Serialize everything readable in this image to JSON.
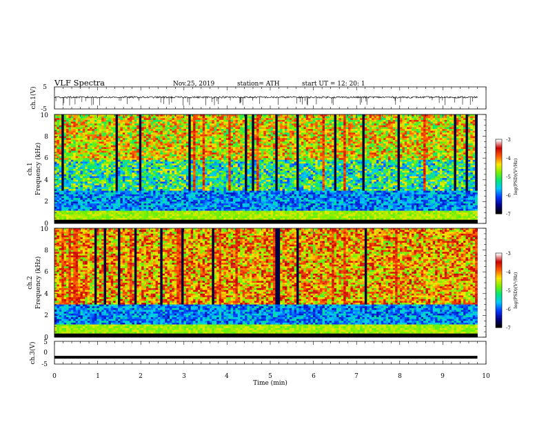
{
  "header": {
    "title": "VLF  Spectra",
    "date": "Nov.25, 2019",
    "station": "station= ATH",
    "start": "start  UT  =    12: 20: 1"
  },
  "chart_data": [
    {
      "type": "line",
      "panel": "ch1-waveform",
      "ylabel": "ch.1(V)",
      "xlim": [
        0,
        10
      ],
      "ylim": [
        -5,
        5
      ],
      "yticks": [
        "5",
        "-5"
      ],
      "x_end": 9.8,
      "approx_level": 0.3,
      "approx_noise": 0.4
    },
    {
      "type": "heatmap",
      "panel": "ch1-spectrogram",
      "ylabel_top": "ch.1",
      "ylabel": "Frequency  (kHz)",
      "xlim": [
        0,
        10
      ],
      "ylim": [
        0,
        10
      ],
      "yticks": [
        "0",
        "2",
        "4",
        "6",
        "8",
        "10"
      ],
      "x_end": 9.8,
      "colorbar": {
        "label": "log(PSD)(V²/Hz)",
        "range": [
          -7,
          -3
        ],
        "ticks": [
          "-3",
          "-4",
          "-5",
          "-6",
          "-7"
        ]
      }
    },
    {
      "type": "heatmap",
      "panel": "ch2-spectrogram",
      "ylabel_top": "ch.2",
      "ylabel": "Frequency  (kHz)",
      "xlim": [
        0,
        10
      ],
      "ylim": [
        0,
        10
      ],
      "yticks": [
        "0",
        "2",
        "4",
        "6",
        "8",
        "10"
      ],
      "x_end": 9.8,
      "colorbar": {
        "label": "log(PSD)(V²/Hz)",
        "range": [
          -7,
          -3
        ],
        "ticks": [
          "-3",
          "-4",
          "-5",
          "-6",
          "-7"
        ]
      }
    },
    {
      "type": "line",
      "panel": "ch3-waveform",
      "ylabel": "ch.3(V)",
      "xlim": [
        0,
        10
      ],
      "ylim": [
        -5,
        5
      ],
      "yticks": [
        "5",
        "0",
        "-5"
      ],
      "x_end": 9.8,
      "approx_level": -2.0
    }
  ],
  "xaxis": {
    "label": "Time  (min)",
    "ticks": [
      "0",
      "1",
      "2",
      "3",
      "4",
      "5",
      "6",
      "7",
      "8",
      "9",
      "10"
    ]
  }
}
